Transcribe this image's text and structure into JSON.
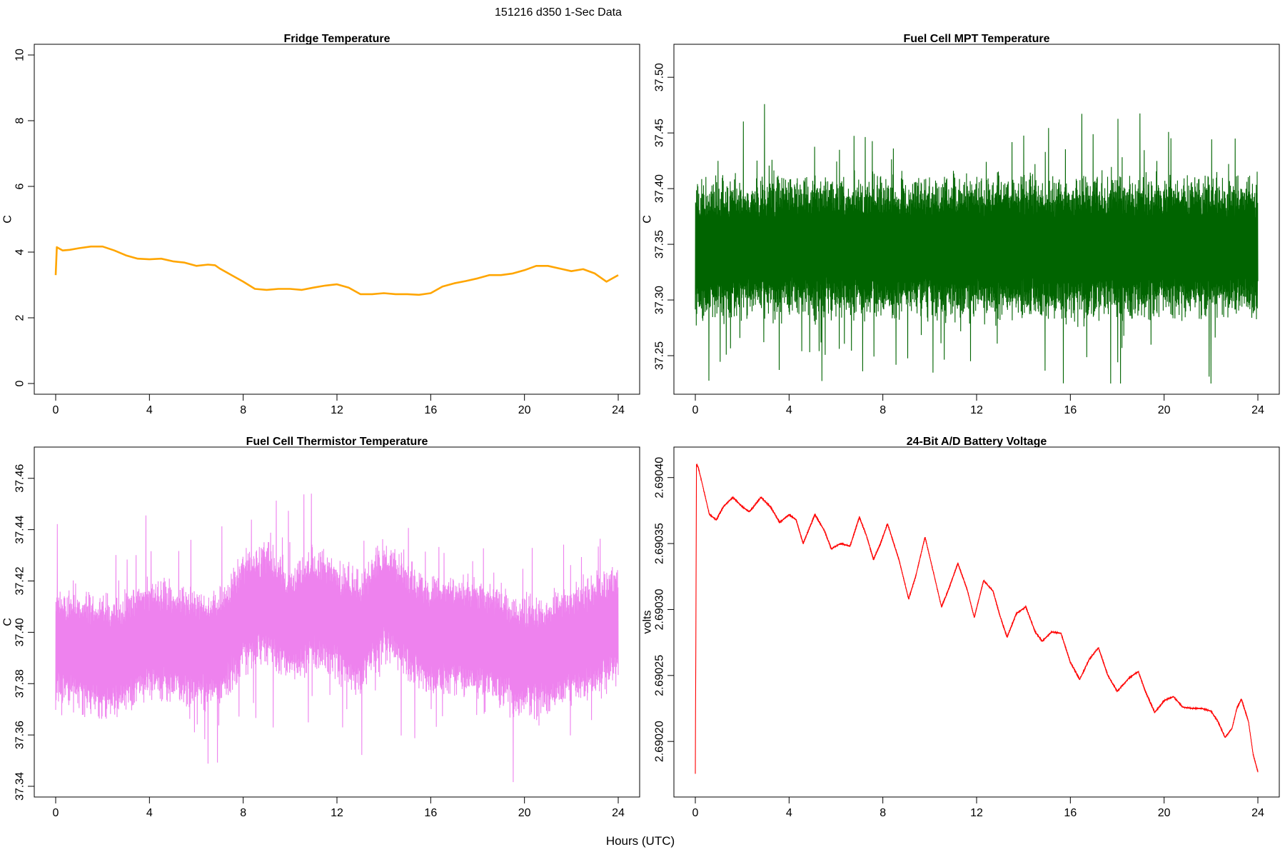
{
  "figure": {
    "title": "151216   d350   1-Sec Data",
    "xlabel": "Hours (UTC)"
  },
  "chart_data": [
    {
      "type": "line",
      "title": "Fridge Temperature",
      "ylabel": "C",
      "color": "#FFA500",
      "xlim": [
        0,
        24
      ],
      "ylim": [
        0,
        10
      ],
      "x_ticks": [
        "0",
        "4",
        "8",
        "12",
        "16",
        "20",
        "24"
      ],
      "y_ticks": [
        "0",
        "2",
        "4",
        "6",
        "8",
        "10"
      ],
      "noise": 0,
      "x": [
        0,
        0.05,
        0.3,
        0.6,
        1.0,
        1.5,
        2.0,
        2.5,
        3.0,
        3.5,
        4.0,
        4.5,
        5.0,
        5.5,
        6.0,
        6.5,
        6.8,
        7.0,
        7.5,
        8.0,
        8.5,
        9.0,
        9.5,
        10.0,
        10.5,
        11.0,
        11.5,
        12.0,
        12.5,
        13.0,
        13.5,
        14.0,
        14.5,
        15.0,
        15.5,
        16.0,
        16.5,
        17.0,
        17.5,
        18.0,
        18.5,
        19.0,
        19.5,
        20.0,
        20.5,
        21.0,
        21.5,
        22.0,
        22.5,
        23.0,
        23.5,
        24.0
      ],
      "y": [
        3.3,
        4.15,
        4.05,
        4.07,
        4.12,
        4.17,
        4.17,
        4.05,
        3.9,
        3.8,
        3.78,
        3.8,
        3.72,
        3.68,
        3.58,
        3.62,
        3.6,
        3.5,
        3.3,
        3.1,
        2.88,
        2.85,
        2.88,
        2.88,
        2.85,
        2.92,
        2.98,
        3.02,
        2.92,
        2.72,
        2.72,
        2.75,
        2.72,
        2.72,
        2.7,
        2.75,
        2.95,
        3.05,
        3.12,
        3.2,
        3.3,
        3.3,
        3.35,
        3.45,
        3.58,
        3.58,
        3.5,
        3.42,
        3.48,
        3.35,
        3.1,
        3.3
      ]
    },
    {
      "type": "line",
      "title": "Fuel Cell MPT Temperature",
      "ylabel": "C",
      "color": "#006400",
      "xlim": [
        0,
        24
      ],
      "ylim": [
        37.225,
        37.52
      ],
      "x_ticks": [
        "0",
        "4",
        "8",
        "12",
        "16",
        "20",
        "24"
      ],
      "y_ticks": [
        "37.25",
        "37.30",
        "37.35",
        "37.40",
        "37.45",
        "37.50"
      ],
      "noise": 0.07,
      "x": [
        0,
        4,
        8,
        12,
        16,
        20,
        24
      ],
      "y": [
        37.345,
        37.348,
        37.347,
        37.348,
        37.347,
        37.348,
        37.347
      ]
    },
    {
      "type": "line",
      "title": "Fuel Cell Thermistor Temperature",
      "ylabel": "C",
      "color": "#EE82EE",
      "xlim": [
        0,
        24
      ],
      "ylim": [
        37.34,
        37.468
      ],
      "x_ticks": [
        "0",
        "4",
        "8",
        "12",
        "16",
        "20",
        "24"
      ],
      "y_ticks": [
        "37.34",
        "37.36",
        "37.38",
        "37.40",
        "37.42",
        "37.44",
        "37.46"
      ],
      "noise": 0.026,
      "x": [
        0,
        1,
        2,
        3,
        4,
        5,
        6,
        7,
        8,
        9,
        10,
        11,
        12,
        13,
        14,
        15,
        16,
        17,
        18,
        19,
        20,
        21,
        22,
        23,
        24
      ],
      "y": [
        37.395,
        37.393,
        37.39,
        37.392,
        37.398,
        37.396,
        37.394,
        37.395,
        37.408,
        37.412,
        37.402,
        37.41,
        37.405,
        37.4,
        37.413,
        37.405,
        37.398,
        37.4,
        37.398,
        37.394,
        37.39,
        37.392,
        37.396,
        37.398,
        37.404
      ]
    },
    {
      "type": "line",
      "title": "24-Bit A/D Battery Voltage",
      "ylabel": "volts",
      "color": "#FF0000",
      "xlim": [
        0,
        24
      ],
      "ylim": [
        2.690166,
        2.690415
      ],
      "x_ticks": [
        "0",
        "4",
        "8",
        "12",
        "16",
        "20",
        "24"
      ],
      "y_ticks": [
        "2.69020",
        "2.69025",
        "2.69030",
        "2.69035",
        "2.69040"
      ],
      "noise": 6e-07,
      "x": [
        0,
        0.05,
        0.12,
        0.3,
        0.6,
        0.9,
        1.2,
        1.6,
        2.0,
        2.3,
        2.8,
        3.2,
        3.6,
        4.0,
        4.3,
        4.6,
        5.1,
        5.5,
        5.8,
        6.2,
        6.6,
        7.0,
        7.3,
        7.6,
        7.9,
        8.2,
        8.7,
        9.1,
        9.4,
        9.8,
        10.2,
        10.5,
        10.8,
        11.2,
        11.6,
        11.9,
        12.3,
        12.7,
        13.0,
        13.3,
        13.7,
        14.1,
        14.5,
        14.8,
        15.2,
        15.6,
        16.0,
        16.4,
        16.8,
        17.2,
        17.6,
        18.0,
        18.5,
        18.9,
        19.2,
        19.6,
        20.0,
        20.4,
        20.8,
        21.2,
        21.6,
        22.0,
        22.3,
        22.6,
        22.9,
        23.1,
        23.3,
        23.6,
        23.8,
        24.0
      ],
      "y": [
        2.690176,
        2.69041,
        2.690408,
        2.690395,
        2.690372,
        2.690368,
        2.690378,
        2.690385,
        2.690378,
        2.690374,
        2.690385,
        2.690378,
        2.690366,
        2.690372,
        2.690368,
        2.69035,
        2.690372,
        2.69036,
        2.690346,
        2.69035,
        2.690348,
        2.69037,
        2.690356,
        2.690338,
        2.69035,
        2.690365,
        2.690337,
        2.690308,
        2.690325,
        2.690355,
        2.690325,
        2.690302,
        2.690315,
        2.690335,
        2.690315,
        2.690294,
        2.690322,
        2.690314,
        2.690295,
        2.690279,
        2.690297,
        2.690302,
        2.690283,
        2.690276,
        2.690283,
        2.690282,
        2.69026,
        2.690247,
        2.690262,
        2.690271,
        2.69025,
        2.690238,
        2.690248,
        2.690253,
        2.690238,
        2.690222,
        2.690231,
        2.690234,
        2.690226,
        2.690225,
        2.690225,
        2.690223,
        2.690215,
        2.690203,
        2.69021,
        2.690225,
        2.690232,
        2.690215,
        2.69019,
        2.690177
      ]
    }
  ]
}
